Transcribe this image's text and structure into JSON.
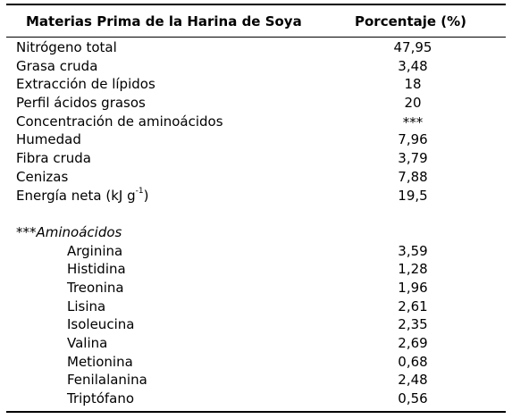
{
  "header": {
    "col1": "Materias Prima de la Harina de Soya",
    "col2": "Porcentaje (%)"
  },
  "main_rows": [
    {
      "name": "Nitrógeno total",
      "value": "47,95"
    },
    {
      "name": "Grasa cruda",
      "value": "3,48"
    },
    {
      "name": "Extracción de lípidos",
      "value": "18"
    },
    {
      "name": "Perfil ácidos grasos",
      "value": "20"
    },
    {
      "name": "Concentración de aminoácidos",
      "value": "***"
    },
    {
      "name": "Humedad",
      "value": "7,96"
    },
    {
      "name": "Fibra cruda",
      "value": "3,79"
    },
    {
      "name": "Cenizas",
      "value": "7,88"
    }
  ],
  "energy_row": {
    "name_prefix": "Energía neta (kJ g",
    "name_sup": "-1",
    "name_suffix": ")",
    "value": "19,5"
  },
  "section_label": "***Aminoácidos",
  "amino_rows": [
    {
      "name": "Arginina",
      "value": "3,59"
    },
    {
      "name": "Histidina",
      "value": "1,28"
    },
    {
      "name": "Treonina",
      "value": "1,96"
    },
    {
      "name": "Lisina",
      "value": "2,61"
    },
    {
      "name": "Isoleucina",
      "value": "2,35"
    },
    {
      "name": "Valina",
      "value": "2,69"
    },
    {
      "name": "Metionina",
      "value": "0,68"
    },
    {
      "name": "Fenilalanina",
      "value": "2,48"
    },
    {
      "name": "Triptófano",
      "value": "0,56"
    }
  ]
}
